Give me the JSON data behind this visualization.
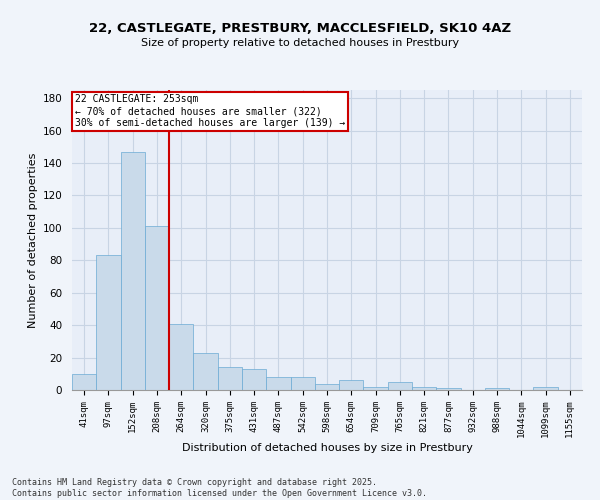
{
  "title_line1": "22, CASTLEGATE, PRESTBURY, MACCLESFIELD, SK10 4AZ",
  "title_line2": "Size of property relative to detached houses in Prestbury",
  "xlabel": "Distribution of detached houses by size in Prestbury",
  "ylabel": "Number of detached properties",
  "categories": [
    "41sqm",
    "97sqm",
    "152sqm",
    "208sqm",
    "264sqm",
    "320sqm",
    "375sqm",
    "431sqm",
    "487sqm",
    "542sqm",
    "598sqm",
    "654sqm",
    "709sqm",
    "765sqm",
    "821sqm",
    "877sqm",
    "932sqm",
    "988sqm",
    "1044sqm",
    "1099sqm",
    "1155sqm"
  ],
  "values": [
    10,
    83,
    147,
    101,
    41,
    23,
    14,
    13,
    8,
    8,
    4,
    6,
    2,
    5,
    2,
    1,
    0,
    1,
    0,
    2,
    0
  ],
  "bar_color": "#c9daea",
  "bar_edge_color": "#6aaad4",
  "bar_edge_width": 0.5,
  "grid_color": "#c8d4e4",
  "bg_color": "#e8eef8",
  "redline_x": 3.5,
  "redline_label": "22 CASTLEGATE: 253sqm",
  "redline_sublabel1": "← 70% of detached houses are smaller (322)",
  "redline_sublabel2": "30% of semi-detached houses are larger (139) →",
  "annotation_box_color": "#ffffff",
  "annotation_border_color": "#cc0000",
  "redline_color": "#cc0000",
  "ylim": [
    0,
    185
  ],
  "yticks": [
    0,
    20,
    40,
    60,
    80,
    100,
    120,
    140,
    160,
    180
  ],
  "footer1": "Contains HM Land Registry data © Crown copyright and database right 2025.",
  "footer2": "Contains public sector information licensed under the Open Government Licence v3.0.",
  "fig_width": 6.0,
  "fig_height": 5.0,
  "fig_dpi": 100
}
